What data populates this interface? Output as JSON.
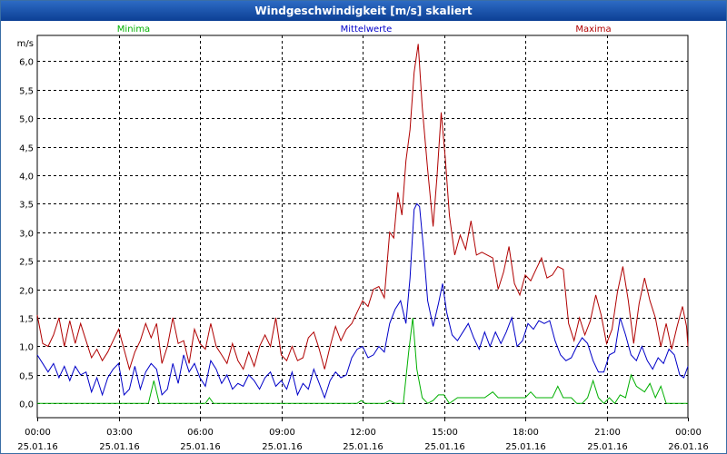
{
  "window": {
    "title": "Windgeschwindigkeit [m/s] skaliert"
  },
  "chart_data": {
    "type": "line",
    "title": "Windgeschwindigkeit [m/s] skaliert",
    "ylabel": "m/s",
    "ylim": [
      -0.25,
      6.45
    ],
    "yticks": [
      "0,0",
      "0,5",
      "1,0",
      "1,5",
      "2,0",
      "2,5",
      "3,0",
      "3,5",
      "4,0",
      "4,5",
      "5,0",
      "5,5",
      "6,0"
    ],
    "ytick_values": [
      0,
      0.5,
      1,
      1.5,
      2,
      2.5,
      3,
      3.5,
      4,
      4.5,
      5,
      5.5,
      6
    ],
    "xlim": [
      0,
      24
    ],
    "xticks": [
      {
        "h": 0,
        "time": "00:00",
        "date": "25.01.16"
      },
      {
        "h": 3,
        "time": "03:00",
        "date": "25.01.16"
      },
      {
        "h": 6,
        "time": "06:00",
        "date": "25.01.16"
      },
      {
        "h": 9,
        "time": "09:00",
        "date": "25.01.16"
      },
      {
        "h": 12,
        "time": "12:00",
        "date": "25.01.16"
      },
      {
        "h": 15,
        "time": "15:00",
        "date": "25.01.16"
      },
      {
        "h": 18,
        "time": "18:00",
        "date": "25.01.16"
      },
      {
        "h": 21,
        "time": "21:00",
        "date": "25.01.16"
      },
      {
        "h": 24,
        "time": "00:00",
        "date": "26.01.16"
      }
    ],
    "grid": true,
    "legend_position": "top",
    "series": [
      {
        "name": "Minima",
        "color": "#00b000",
        "points": [
          [
            0,
            0
          ],
          [
            4.1,
            0
          ],
          [
            4.3,
            0.4
          ],
          [
            4.5,
            0
          ],
          [
            6.2,
            0
          ],
          [
            6.35,
            0.1
          ],
          [
            6.5,
            0
          ],
          [
            11.8,
            0
          ],
          [
            11.95,
            0.05
          ],
          [
            12.1,
            0
          ],
          [
            12.8,
            0
          ],
          [
            13.0,
            0.05
          ],
          [
            13.2,
            0
          ],
          [
            13.5,
            0
          ],
          [
            13.7,
            0.9
          ],
          [
            13.85,
            1.5
          ],
          [
            14.0,
            0.6
          ],
          [
            14.2,
            0.1
          ],
          [
            14.4,
            0
          ],
          [
            14.6,
            0.05
          ],
          [
            14.8,
            0.15
          ],
          [
            15.0,
            0.15
          ],
          [
            15.2,
            0
          ],
          [
            15.5,
            0.1
          ],
          [
            16.0,
            0.1
          ],
          [
            16.5,
            0.1
          ],
          [
            16.8,
            0.2
          ],
          [
            17.0,
            0.1
          ],
          [
            17.5,
            0.1
          ],
          [
            18.0,
            0.1
          ],
          [
            18.2,
            0.2
          ],
          [
            18.4,
            0.1
          ],
          [
            19.0,
            0.1
          ],
          [
            19.2,
            0.3
          ],
          [
            19.4,
            0.1
          ],
          [
            19.7,
            0.1
          ],
          [
            19.9,
            0
          ],
          [
            20.1,
            0
          ],
          [
            20.3,
            0.1
          ],
          [
            20.5,
            0.4
          ],
          [
            20.7,
            0.1
          ],
          [
            20.9,
            0
          ],
          [
            21.1,
            0.1
          ],
          [
            21.3,
            0
          ],
          [
            21.5,
            0.15
          ],
          [
            21.7,
            0.1
          ],
          [
            21.9,
            0.5
          ],
          [
            22.1,
            0.3
          ],
          [
            22.4,
            0.2
          ],
          [
            22.6,
            0.35
          ],
          [
            22.8,
            0.1
          ],
          [
            23.0,
            0.3
          ],
          [
            23.2,
            0
          ],
          [
            24,
            0
          ]
        ]
      },
      {
        "name": "Mittelwerte",
        "color": "#0000c8",
        "points": [
          [
            0,
            0.85
          ],
          [
            0.2,
            0.7
          ],
          [
            0.4,
            0.55
          ],
          [
            0.6,
            0.7
          ],
          [
            0.8,
            0.45
          ],
          [
            1.0,
            0.65
          ],
          [
            1.2,
            0.4
          ],
          [
            1.4,
            0.65
          ],
          [
            1.6,
            0.5
          ],
          [
            1.8,
            0.55
          ],
          [
            2.0,
            0.2
          ],
          [
            2.2,
            0.45
          ],
          [
            2.4,
            0.15
          ],
          [
            2.6,
            0.45
          ],
          [
            2.8,
            0.6
          ],
          [
            3.0,
            0.7
          ],
          [
            3.2,
            0.15
          ],
          [
            3.4,
            0.25
          ],
          [
            3.6,
            0.65
          ],
          [
            3.8,
            0.25
          ],
          [
            4.0,
            0.55
          ],
          [
            4.2,
            0.7
          ],
          [
            4.4,
            0.6
          ],
          [
            4.6,
            0.15
          ],
          [
            4.8,
            0.25
          ],
          [
            5.0,
            0.7
          ],
          [
            5.2,
            0.35
          ],
          [
            5.4,
            0.85
          ],
          [
            5.6,
            0.55
          ],
          [
            5.8,
            0.7
          ],
          [
            6.0,
            0.45
          ],
          [
            6.2,
            0.3
          ],
          [
            6.4,
            0.75
          ],
          [
            6.6,
            0.6
          ],
          [
            6.8,
            0.35
          ],
          [
            7.0,
            0.5
          ],
          [
            7.2,
            0.25
          ],
          [
            7.4,
            0.35
          ],
          [
            7.6,
            0.3
          ],
          [
            7.8,
            0.5
          ],
          [
            8.0,
            0.4
          ],
          [
            8.2,
            0.25
          ],
          [
            8.4,
            0.45
          ],
          [
            8.6,
            0.55
          ],
          [
            8.8,
            0.3
          ],
          [
            9.0,
            0.4
          ],
          [
            9.2,
            0.25
          ],
          [
            9.4,
            0.55
          ],
          [
            9.6,
            0.15
          ],
          [
            9.8,
            0.35
          ],
          [
            10.0,
            0.25
          ],
          [
            10.2,
            0.6
          ],
          [
            10.4,
            0.35
          ],
          [
            10.6,
            0.1
          ],
          [
            10.8,
            0.4
          ],
          [
            11.0,
            0.55
          ],
          [
            11.2,
            0.45
          ],
          [
            11.4,
            0.5
          ],
          [
            11.6,
            0.8
          ],
          [
            11.8,
            0.95
          ],
          [
            12.0,
            1.0
          ],
          [
            12.2,
            0.8
          ],
          [
            12.4,
            0.85
          ],
          [
            12.6,
            1.0
          ],
          [
            12.8,
            0.9
          ],
          [
            13.0,
            1.4
          ],
          [
            13.2,
            1.65
          ],
          [
            13.4,
            1.8
          ],
          [
            13.6,
            1.4
          ],
          [
            13.75,
            2.2
          ],
          [
            13.9,
            3.4
          ],
          [
            14.0,
            3.5
          ],
          [
            14.1,
            3.45
          ],
          [
            14.25,
            2.7
          ],
          [
            14.4,
            1.8
          ],
          [
            14.6,
            1.35
          ],
          [
            14.8,
            1.75
          ],
          [
            14.95,
            2.1
          ],
          [
            15.1,
            1.6
          ],
          [
            15.3,
            1.2
          ],
          [
            15.5,
            1.1
          ],
          [
            15.7,
            1.25
          ],
          [
            15.9,
            1.4
          ],
          [
            16.1,
            1.15
          ],
          [
            16.3,
            0.95
          ],
          [
            16.5,
            1.25
          ],
          [
            16.7,
            1.0
          ],
          [
            16.9,
            1.25
          ],
          [
            17.1,
            1.05
          ],
          [
            17.3,
            1.25
          ],
          [
            17.5,
            1.5
          ],
          [
            17.7,
            1.0
          ],
          [
            17.9,
            1.1
          ],
          [
            18.1,
            1.4
          ],
          [
            18.3,
            1.3
          ],
          [
            18.5,
            1.45
          ],
          [
            18.7,
            1.4
          ],
          [
            18.9,
            1.45
          ],
          [
            19.1,
            1.1
          ],
          [
            19.3,
            0.85
          ],
          [
            19.5,
            0.75
          ],
          [
            19.7,
            0.8
          ],
          [
            19.9,
            1.0
          ],
          [
            20.1,
            1.15
          ],
          [
            20.3,
            1.05
          ],
          [
            20.5,
            0.75
          ],
          [
            20.7,
            0.55
          ],
          [
            20.9,
            0.55
          ],
          [
            21.1,
            0.85
          ],
          [
            21.3,
            0.9
          ],
          [
            21.5,
            1.5
          ],
          [
            21.7,
            1.2
          ],
          [
            21.9,
            0.85
          ],
          [
            22.1,
            0.75
          ],
          [
            22.3,
            1.0
          ],
          [
            22.5,
            0.75
          ],
          [
            22.7,
            0.6
          ],
          [
            22.9,
            0.8
          ],
          [
            23.1,
            0.7
          ],
          [
            23.3,
            0.95
          ],
          [
            23.5,
            0.85
          ],
          [
            23.7,
            0.5
          ],
          [
            23.85,
            0.45
          ],
          [
            24,
            0.65
          ]
        ]
      },
      {
        "name": "Maxima",
        "color": "#b00000",
        "points": [
          [
            0,
            1.55
          ],
          [
            0.2,
            1.05
          ],
          [
            0.4,
            1.0
          ],
          [
            0.6,
            1.2
          ],
          [
            0.8,
            1.5
          ],
          [
            1.0,
            1.0
          ],
          [
            1.2,
            1.45
          ],
          [
            1.4,
            1.05
          ],
          [
            1.6,
            1.4
          ],
          [
            1.8,
            1.1
          ],
          [
            2.0,
            0.8
          ],
          [
            2.2,
            0.95
          ],
          [
            2.4,
            0.75
          ],
          [
            2.6,
            0.9
          ],
          [
            2.8,
            1.1
          ],
          [
            3.0,
            1.3
          ],
          [
            3.2,
            0.95
          ],
          [
            3.4,
            0.6
          ],
          [
            3.6,
            0.9
          ],
          [
            3.8,
            1.1
          ],
          [
            4.0,
            1.4
          ],
          [
            4.2,
            1.15
          ],
          [
            4.4,
            1.4
          ],
          [
            4.6,
            0.7
          ],
          [
            4.8,
            1.0
          ],
          [
            5.0,
            1.5
          ],
          [
            5.2,
            1.05
          ],
          [
            5.4,
            1.1
          ],
          [
            5.6,
            0.7
          ],
          [
            5.8,
            1.3
          ],
          [
            6.0,
            1.05
          ],
          [
            6.2,
            0.95
          ],
          [
            6.4,
            1.4
          ],
          [
            6.6,
            1.0
          ],
          [
            6.8,
            0.85
          ],
          [
            7.0,
            0.7
          ],
          [
            7.2,
            1.05
          ],
          [
            7.4,
            0.75
          ],
          [
            7.6,
            0.6
          ],
          [
            7.8,
            0.9
          ],
          [
            8.0,
            0.65
          ],
          [
            8.2,
            1.0
          ],
          [
            8.4,
            1.2
          ],
          [
            8.6,
            1.0
          ],
          [
            8.8,
            1.5
          ],
          [
            9.0,
            0.85
          ],
          [
            9.2,
            0.75
          ],
          [
            9.4,
            1.0
          ],
          [
            9.6,
            0.75
          ],
          [
            9.8,
            0.8
          ],
          [
            10.0,
            1.15
          ],
          [
            10.2,
            1.25
          ],
          [
            10.4,
            0.95
          ],
          [
            10.6,
            0.6
          ],
          [
            10.8,
            1.0
          ],
          [
            11.0,
            1.35
          ],
          [
            11.2,
            1.1
          ],
          [
            11.4,
            1.3
          ],
          [
            11.6,
            1.4
          ],
          [
            11.8,
            1.6
          ],
          [
            12.0,
            1.8
          ],
          [
            12.2,
            1.7
          ],
          [
            12.4,
            2.0
          ],
          [
            12.6,
            2.05
          ],
          [
            12.8,
            1.85
          ],
          [
            13.0,
            3.0
          ],
          [
            13.15,
            2.9
          ],
          [
            13.3,
            3.7
          ],
          [
            13.45,
            3.3
          ],
          [
            13.6,
            4.25
          ],
          [
            13.75,
            4.8
          ],
          [
            13.9,
            5.8
          ],
          [
            14.05,
            6.3
          ],
          [
            14.2,
            5.2
          ],
          [
            14.4,
            4.1
          ],
          [
            14.6,
            3.1
          ],
          [
            14.75,
            4.0
          ],
          [
            14.9,
            5.1
          ],
          [
            15.05,
            4.3
          ],
          [
            15.2,
            3.3
          ],
          [
            15.4,
            2.6
          ],
          [
            15.6,
            2.95
          ],
          [
            15.8,
            2.7
          ],
          [
            16.0,
            3.2
          ],
          [
            16.2,
            2.6
          ],
          [
            16.4,
            2.65
          ],
          [
            16.6,
            2.6
          ],
          [
            16.8,
            2.55
          ],
          [
            17.0,
            2.0
          ],
          [
            17.2,
            2.3
          ],
          [
            17.4,
            2.75
          ],
          [
            17.6,
            2.1
          ],
          [
            17.8,
            1.9
          ],
          [
            18.0,
            2.25
          ],
          [
            18.2,
            2.15
          ],
          [
            18.4,
            2.35
          ],
          [
            18.6,
            2.55
          ],
          [
            18.8,
            2.2
          ],
          [
            19.0,
            2.25
          ],
          [
            19.2,
            2.4
          ],
          [
            19.4,
            2.35
          ],
          [
            19.6,
            1.4
          ],
          [
            19.8,
            1.1
          ],
          [
            20.0,
            1.5
          ],
          [
            20.2,
            1.2
          ],
          [
            20.4,
            1.45
          ],
          [
            20.6,
            1.9
          ],
          [
            20.8,
            1.55
          ],
          [
            21.0,
            1.05
          ],
          [
            21.2,
            1.3
          ],
          [
            21.4,
            1.95
          ],
          [
            21.6,
            2.4
          ],
          [
            21.8,
            1.8
          ],
          [
            22.0,
            1.05
          ],
          [
            22.2,
            1.75
          ],
          [
            22.4,
            2.2
          ],
          [
            22.6,
            1.8
          ],
          [
            22.8,
            1.5
          ],
          [
            23.0,
            1.0
          ],
          [
            23.2,
            1.4
          ],
          [
            23.4,
            0.95
          ],
          [
            23.6,
            1.35
          ],
          [
            23.8,
            1.7
          ],
          [
            23.95,
            1.35
          ],
          [
            24,
            1.0
          ]
        ]
      }
    ]
  }
}
